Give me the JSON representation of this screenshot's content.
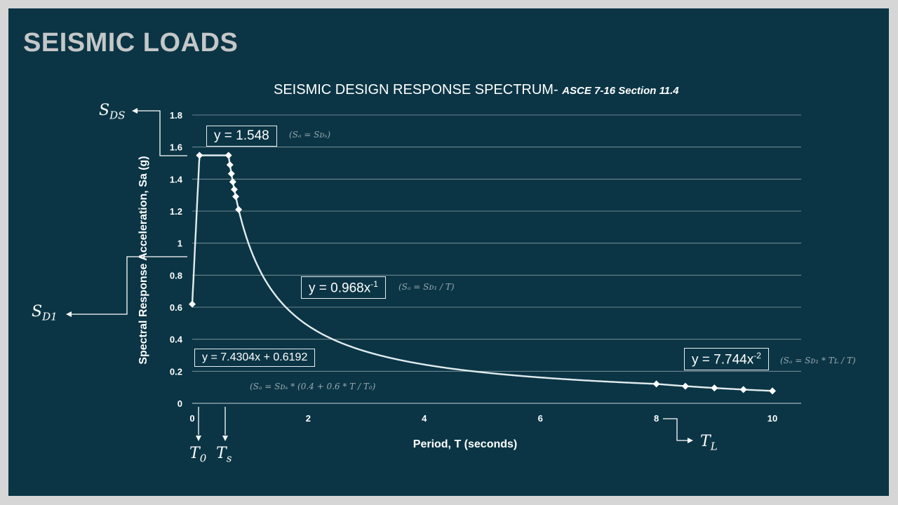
{
  "slide": {
    "title": "SEISMIC LOADS"
  },
  "chart_data": {
    "type": "line",
    "title": "SEISMIC DESIGN RESPONSE SPECTRUM-",
    "subtitle": "ASCE 7-16 Section 11.4",
    "xlabel": "Period, T (seconds)",
    "ylabel": "Spectral Response Acceleration, Sa (g)",
    "xlim": [
      0,
      10
    ],
    "ylim": [
      0,
      1.8
    ],
    "xticks": [
      "0",
      "2",
      "4",
      "6",
      "8",
      "10"
    ],
    "yticks": [
      "0",
      "0.2",
      "0.4",
      "0.6",
      "0.8",
      "1",
      "1.2",
      "1.4",
      "1.6",
      "1.8"
    ],
    "grid": "horizontal",
    "series": [
      {
        "markers": [
          {
            "x": 0,
            "y": 0.6192
          },
          {
            "x": 0.125,
            "y": 1.548
          },
          {
            "x": 0.625,
            "y": 1.548
          },
          {
            "x": 0.65,
            "y": 1.489
          },
          {
            "x": 0.675,
            "y": 1.434
          },
          {
            "x": 0.7,
            "y": 1.383
          },
          {
            "x": 0.725,
            "y": 1.335
          },
          {
            "x": 0.75,
            "y": 1.291
          },
          {
            "x": 0.8,
            "y": 1.21
          },
          {
            "x": 8,
            "y": 0.121
          },
          {
            "x": 8.5,
            "y": 0.107
          },
          {
            "x": 9,
            "y": 0.096
          },
          {
            "x": 9.5,
            "y": 0.086
          },
          {
            "x": 10,
            "y": 0.077
          }
        ]
      }
    ],
    "annotations": {
      "eq_plateau": "y = 1.548",
      "eq_plateau_formula": "(Sₐ = Sᴅₛ)",
      "eq_descend": "y = 0.968x",
      "eq_descend_exp": "-1",
      "eq_descend_formula": "(Sₐ = Sᴅ₁ / T)",
      "eq_long": "y = 7.744x",
      "eq_long_exp": "-2",
      "eq_long_formula": "(Sₐ = Sᴅ₁ * Tʟ / T)",
      "eq_linear": "y = 7.4304x + 0.6192",
      "eq_linear_formula": "(Sₐ = Sᴅₛ * (0.4 + 0.6 * T / T₀)"
    },
    "symbols": {
      "sds": "S",
      "sds_sub": "DS",
      "sd1": "S",
      "sd1_sub": "D1",
      "t0": "T",
      "t0_sub": "0",
      "ts": "T",
      "ts_sub": "s",
      "tl": "T",
      "tl_sub": "L"
    }
  }
}
